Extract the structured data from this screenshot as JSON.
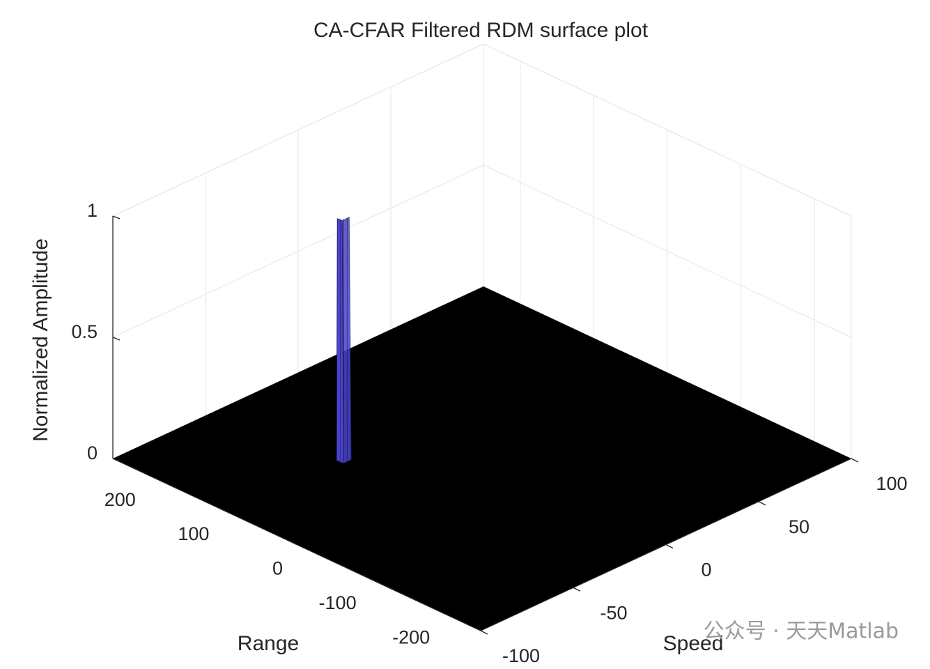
{
  "chart_data": {
    "type": "surface3d",
    "title": "CA-CFAR Filtered RDM surface plot",
    "xlabel": "Range",
    "ylabel": "Speed",
    "zlabel": "Normalized Amplitude",
    "xlim": [
      -250,
      250
    ],
    "xticks": [
      -200,
      -100,
      0,
      100,
      200
    ],
    "ylim": [
      -100,
      100
    ],
    "yticks": [
      -100,
      -50,
      0,
      50,
      100
    ],
    "zlim": [
      0,
      1
    ],
    "zticks": [
      0,
      0.5,
      1
    ],
    "grid": true,
    "surface_color": "#000000",
    "series": [
      {
        "x": [
          90
        ],
        "y": [
          -39
        ],
        "values": [
          1
        ],
        "color": "#4a44d0"
      }
    ],
    "watermark": "公众号 · 天天Matlab"
  }
}
